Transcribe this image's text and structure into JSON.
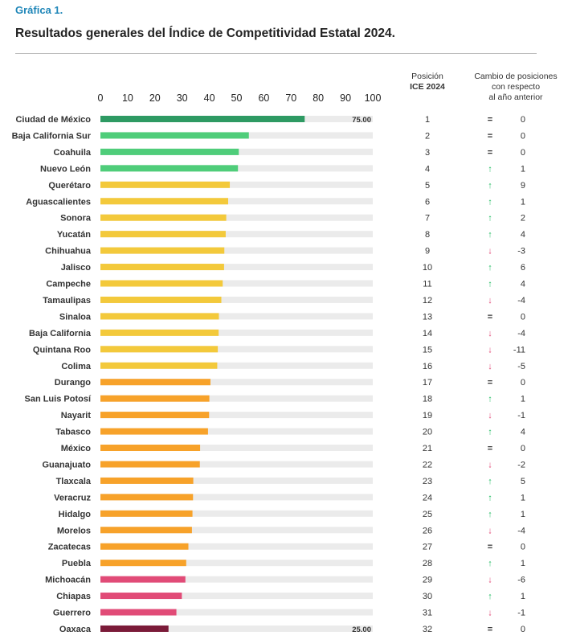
{
  "header": {
    "kicker": "Gráfica 1.",
    "title": "Resultados generales del Índice de Competitividad Estatal 2024."
  },
  "columns": {
    "position_line1": "Posición",
    "position_line2": "ICE 2024",
    "change_line1": "Cambio de posiciones",
    "change_line2": "con respecto",
    "change_line3": "al año anterior"
  },
  "colors": {
    "track": "#ebebeb",
    "top": "#2e9a63",
    "high": "#4fcd7a",
    "mid": "#f3c93b",
    "low": "#f7a22a",
    "lower": "#e14b77",
    "bottom": "#7b1b39",
    "arrow_up": "#2bbf68",
    "arrow_down": "#e14b77"
  },
  "chart_data": {
    "type": "bar",
    "orientation": "horizontal",
    "title": "Resultados generales del Índice de Competitividad Estatal 2024.",
    "xlim": [
      0,
      100
    ],
    "x_ticks": [
      0,
      10,
      20,
      30,
      40,
      50,
      60,
      70,
      80,
      90,
      100
    ],
    "value_labels": [
      {
        "state": "Ciudad de México",
        "text": "75.00"
      },
      {
        "state": "Oaxaca",
        "text": "25.00"
      }
    ],
    "rows": [
      {
        "state": "Ciudad de México",
        "value": 75.0,
        "group": "top",
        "position": "1",
        "trend": "=",
        "change": "0"
      },
      {
        "state": "Baja California Sur",
        "value": 54.5,
        "group": "high",
        "position": "2",
        "trend": "=",
        "change": "0"
      },
      {
        "state": "Coahuila",
        "value": 50.8,
        "group": "high",
        "position": "3",
        "trend": "=",
        "change": "0"
      },
      {
        "state": "Nuevo León",
        "value": 50.5,
        "group": "high",
        "position": "4",
        "trend": "up",
        "change": "1"
      },
      {
        "state": "Querétaro",
        "value": 47.5,
        "group": "mid",
        "position": "5",
        "trend": "up",
        "change": "9"
      },
      {
        "state": "Aguascalientes",
        "value": 46.9,
        "group": "mid",
        "position": "6",
        "trend": "up",
        "change": "1"
      },
      {
        "state": "Sonora",
        "value": 46.2,
        "group": "mid",
        "position": "7",
        "trend": "up",
        "change": "2"
      },
      {
        "state": "Yucatán",
        "value": 46.0,
        "group": "mid",
        "position": "8",
        "trend": "up",
        "change": "4"
      },
      {
        "state": "Chihuahua",
        "value": 45.5,
        "group": "mid",
        "position": "9",
        "trend": "down",
        "change": "-3"
      },
      {
        "state": "Jalisco",
        "value": 45.4,
        "group": "mid",
        "position": "10",
        "trend": "up",
        "change": "6"
      },
      {
        "state": "Campeche",
        "value": 44.9,
        "group": "mid",
        "position": "11",
        "trend": "up",
        "change": "4"
      },
      {
        "state": "Tamaulipas",
        "value": 44.4,
        "group": "mid",
        "position": "12",
        "trend": "down",
        "change": "-4"
      },
      {
        "state": "Sinaloa",
        "value": 43.5,
        "group": "mid",
        "position": "13",
        "trend": "=",
        "change": "0"
      },
      {
        "state": "Baja California",
        "value": 43.4,
        "group": "mid",
        "position": "14",
        "trend": "down",
        "change": "-4"
      },
      {
        "state": "Quintana Roo",
        "value": 43.1,
        "group": "mid",
        "position": "15",
        "trend": "down",
        "change": "-11"
      },
      {
        "state": "Colima",
        "value": 42.9,
        "group": "mid",
        "position": "16",
        "trend": "down",
        "change": "-5"
      },
      {
        "state": "Durango",
        "value": 40.4,
        "group": "low",
        "position": "17",
        "trend": "=",
        "change": "0"
      },
      {
        "state": "San Luis Potosí",
        "value": 40.0,
        "group": "low",
        "position": "18",
        "trend": "up",
        "change": "1"
      },
      {
        "state": "Nayarit",
        "value": 39.9,
        "group": "low",
        "position": "19",
        "trend": "down",
        "change": "-1"
      },
      {
        "state": "Tabasco",
        "value": 39.5,
        "group": "low",
        "position": "20",
        "trend": "up",
        "change": "4"
      },
      {
        "state": "México",
        "value": 36.6,
        "group": "low",
        "position": "21",
        "trend": "=",
        "change": "0"
      },
      {
        "state": "Guanajuato",
        "value": 36.5,
        "group": "low",
        "position": "22",
        "trend": "down",
        "change": "-2"
      },
      {
        "state": "Tlaxcala",
        "value": 34.1,
        "group": "low",
        "position": "23",
        "trend": "up",
        "change": "5"
      },
      {
        "state": "Veracruz",
        "value": 34.0,
        "group": "low",
        "position": "24",
        "trend": "up",
        "change": "1"
      },
      {
        "state": "Hidalgo",
        "value": 33.8,
        "group": "low",
        "position": "25",
        "trend": "up",
        "change": "1"
      },
      {
        "state": "Morelos",
        "value": 33.6,
        "group": "low",
        "position": "26",
        "trend": "down",
        "change": "-4"
      },
      {
        "state": "Zacatecas",
        "value": 32.3,
        "group": "low",
        "position": "27",
        "trend": "=",
        "change": "0"
      },
      {
        "state": "Puebla",
        "value": 31.5,
        "group": "low",
        "position": "28",
        "trend": "up",
        "change": "1"
      },
      {
        "state": "Michoacán",
        "value": 31.2,
        "group": "lower",
        "position": "29",
        "trend": "down",
        "change": "-6"
      },
      {
        "state": "Chiapas",
        "value": 29.9,
        "group": "lower",
        "position": "30",
        "trend": "up",
        "change": "1"
      },
      {
        "state": "Guerrero",
        "value": 27.9,
        "group": "lower",
        "position": "31",
        "trend": "down",
        "change": "-1"
      },
      {
        "state": "Oaxaca",
        "value": 25.0,
        "group": "bottom",
        "position": "32",
        "trend": "=",
        "change": "0"
      }
    ]
  }
}
